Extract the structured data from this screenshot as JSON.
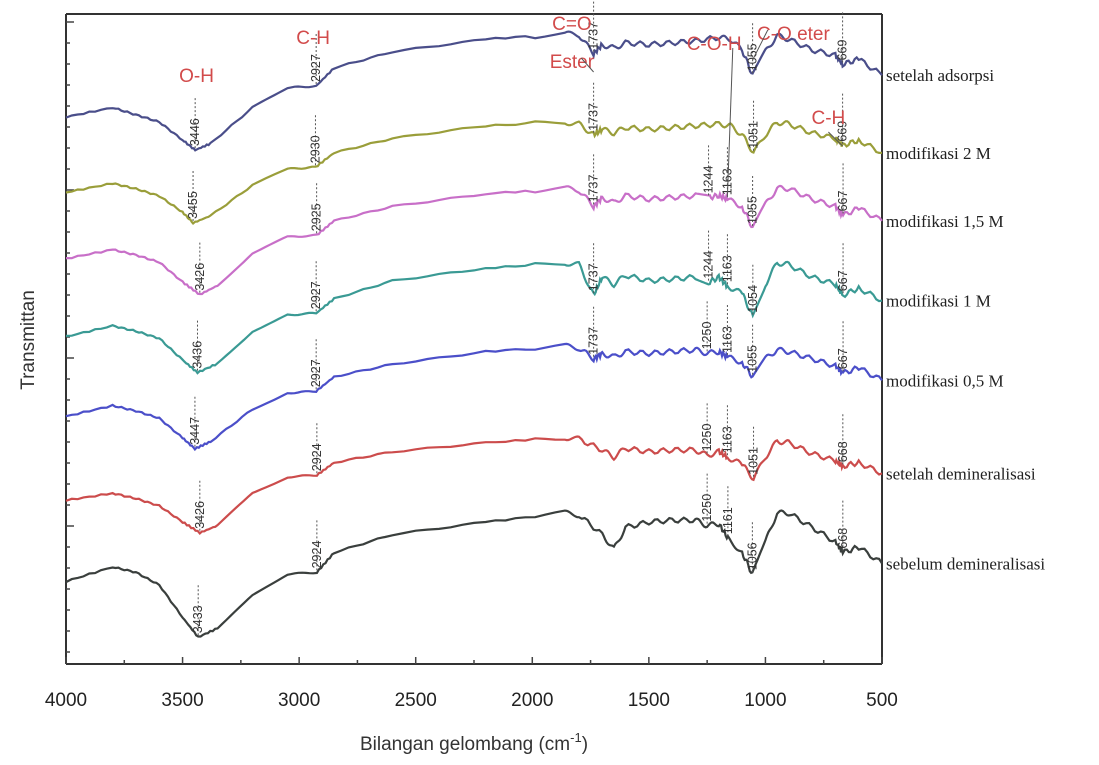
{
  "chart_data": {
    "type": "line",
    "title": "",
    "xlabel": "Bilangan gelombang (cm",
    "xlabel_sup": "-1",
    "xlabel_close": ")",
    "ylabel": "Transmittan",
    "xlim": [
      4000,
      500
    ],
    "x_reversed": true,
    "y_ticklabels": false,
    "grid": false,
    "legend": "labels at right end of each curve",
    "x_ticks": [
      4000,
      3500,
      3000,
      2500,
      2000,
      1500,
      1000,
      500
    ],
    "group_labels": [
      {
        "text": "O-H",
        "x": 3440
      },
      {
        "text": "C-H",
        "x": 2940
      },
      {
        "text": "C=O",
        "x": 1830
      },
      {
        "text": "Ester",
        "x": 1830
      },
      {
        "text": "C-O-H",
        "x": 1220
      },
      {
        "text": "C-O eter",
        "x": 880
      },
      {
        "text": "C-H",
        "x": 730
      }
    ],
    "series": [
      {
        "name": "setelah adsorpsi",
        "color": "#4a4e8a",
        "peaks": [
          "3446",
          "2927",
          "1737",
          "1055",
          "669"
        ],
        "points": [
          [
            4000,
            0.14
          ],
          [
            3800,
            0.4
          ],
          [
            3700,
            0.2
          ],
          [
            3600,
            0.0
          ],
          [
            3500,
            -0.5
          ],
          [
            3446,
            -0.78
          ],
          [
            3380,
            -0.6
          ],
          [
            3200,
            0.4
          ],
          [
            3050,
            0.95
          ],
          [
            2927,
            1.0
          ],
          [
            2850,
            1.5
          ],
          [
            2600,
            1.95
          ],
          [
            2200,
            2.3
          ],
          [
            1860,
            2.45
          ],
          [
            1800,
            2.42
          ],
          [
            1737,
            1.9
          ],
          [
            1700,
            2.15
          ],
          [
            1650,
            2.05
          ],
          [
            1600,
            2.2
          ],
          [
            1500,
            2.15
          ],
          [
            1400,
            2.2
          ],
          [
            1300,
            2.25
          ],
          [
            1200,
            2.35
          ],
          [
            1150,
            2.3
          ],
          [
            1100,
            2.0
          ],
          [
            1055,
            1.3
          ],
          [
            1000,
            1.95
          ],
          [
            950,
            2.4
          ],
          [
            900,
            2.3
          ],
          [
            800,
            2.0
          ],
          [
            700,
            1.85
          ],
          [
            669,
            1.6
          ],
          [
            600,
            1.75
          ],
          [
            500,
            1.3
          ]
        ]
      },
      {
        "name": "modifikasi 2 M",
        "color": "#9a9e3a",
        "peaks": [
          "3455",
          "2930",
          "1737",
          "1051",
          "669"
        ],
        "points": [
          [
            4000,
            0.1
          ],
          [
            3800,
            0.35
          ],
          [
            3700,
            0.2
          ],
          [
            3600,
            0.0
          ],
          [
            3500,
            -0.45
          ],
          [
            3455,
            -0.75
          ],
          [
            3380,
            -0.55
          ],
          [
            3200,
            0.3
          ],
          [
            3050,
            0.75
          ],
          [
            2930,
            0.8
          ],
          [
            2850,
            1.2
          ],
          [
            2600,
            1.6
          ],
          [
            2200,
            1.95
          ],
          [
            1860,
            2.05
          ],
          [
            1800,
            2.0
          ],
          [
            1737,
            1.7
          ],
          [
            1700,
            1.85
          ],
          [
            1650,
            1.75
          ],
          [
            1600,
            1.9
          ],
          [
            1500,
            1.85
          ],
          [
            1400,
            1.9
          ],
          [
            1300,
            1.95
          ],
          [
            1200,
            2.0
          ],
          [
            1150,
            1.95
          ],
          [
            1100,
            1.7
          ],
          [
            1051,
            1.2
          ],
          [
            1000,
            1.7
          ],
          [
            950,
            2.05
          ],
          [
            900,
            2.0
          ],
          [
            800,
            1.75
          ],
          [
            700,
            1.6
          ],
          [
            669,
            1.4
          ],
          [
            600,
            1.55
          ],
          [
            500,
            1.2
          ]
        ]
      },
      {
        "name": "modifikasi 1,5 M",
        "color": "#c86fc8",
        "peaks": [
          "3426",
          "2925",
          "1737",
          "1244",
          "1163",
          "1055",
          "667"
        ],
        "points": [
          [
            4000,
            0.15
          ],
          [
            3800,
            0.4
          ],
          [
            3700,
            0.25
          ],
          [
            3600,
            0.05
          ],
          [
            3500,
            -0.5
          ],
          [
            3426,
            -0.85
          ],
          [
            3350,
            -0.6
          ],
          [
            3200,
            0.3
          ],
          [
            3050,
            0.75
          ],
          [
            2925,
            0.8
          ],
          [
            2850,
            1.2
          ],
          [
            2600,
            1.6
          ],
          [
            2200,
            1.95
          ],
          [
            1860,
            2.1
          ],
          [
            1800,
            2.05
          ],
          [
            1737,
            1.6
          ],
          [
            1700,
            1.85
          ],
          [
            1650,
            1.7
          ],
          [
            1600,
            1.9
          ],
          [
            1500,
            1.8
          ],
          [
            1400,
            1.85
          ],
          [
            1300,
            1.9
          ],
          [
            1244,
            1.85
          ],
          [
            1200,
            1.9
          ],
          [
            1163,
            1.8
          ],
          [
            1100,
            1.6
          ],
          [
            1055,
            1.0
          ],
          [
            1000,
            1.65
          ],
          [
            950,
            2.1
          ],
          [
            900,
            2.1
          ],
          [
            800,
            1.8
          ],
          [
            700,
            1.6
          ],
          [
            667,
            1.35
          ],
          [
            600,
            1.55
          ],
          [
            500,
            1.2
          ]
        ]
      },
      {
        "name": "modifikasi 1 M",
        "color": "#3a9a94",
        "peaks": [
          "3436",
          "2927",
          "1737",
          "1244",
          "1163",
          "1054",
          "667"
        ],
        "points": [
          [
            4000,
            0.15
          ],
          [
            3800,
            0.45
          ],
          [
            3700,
            0.3
          ],
          [
            3600,
            0.1
          ],
          [
            3500,
            -0.5
          ],
          [
            3436,
            -0.85
          ],
          [
            3350,
            -0.6
          ],
          [
            3200,
            0.3
          ],
          [
            3050,
            0.75
          ],
          [
            2927,
            0.8
          ],
          [
            2850,
            1.2
          ],
          [
            2600,
            1.7
          ],
          [
            2200,
            2.05
          ],
          [
            1860,
            2.2
          ],
          [
            1800,
            2.15
          ],
          [
            1737,
            1.3
          ],
          [
            1700,
            1.8
          ],
          [
            1650,
            1.6
          ],
          [
            1600,
            1.85
          ],
          [
            1500,
            1.7
          ],
          [
            1400,
            1.75
          ],
          [
            1300,
            1.8
          ],
          [
            1244,
            1.65
          ],
          [
            1200,
            1.8
          ],
          [
            1163,
            1.55
          ],
          [
            1100,
            1.35
          ],
          [
            1054,
            0.7
          ],
          [
            1000,
            1.6
          ],
          [
            950,
            2.2
          ],
          [
            900,
            2.15
          ],
          [
            800,
            1.8
          ],
          [
            700,
            1.6
          ],
          [
            667,
            1.3
          ],
          [
            600,
            1.5
          ],
          [
            500,
            1.15
          ]
        ]
      },
      {
        "name": "modifikasi 0,5 M",
        "color": "#4b4fc9",
        "peaks": [
          "3447",
          "2927",
          "1737",
          "1250",
          "1163",
          "1055",
          "667"
        ],
        "points": [
          [
            4000,
            0.1
          ],
          [
            3800,
            0.4
          ],
          [
            3700,
            0.25
          ],
          [
            3600,
            0.05
          ],
          [
            3500,
            -0.5
          ],
          [
            3447,
            -0.8
          ],
          [
            3380,
            -0.6
          ],
          [
            3200,
            0.3
          ],
          [
            3050,
            0.75
          ],
          [
            2927,
            0.8
          ],
          [
            2850,
            1.2
          ],
          [
            2600,
            1.55
          ],
          [
            2200,
            1.9
          ],
          [
            1860,
            2.05
          ],
          [
            1800,
            2.0
          ],
          [
            1737,
            1.7
          ],
          [
            1700,
            1.85
          ],
          [
            1650,
            1.75
          ],
          [
            1600,
            1.9
          ],
          [
            1500,
            1.85
          ],
          [
            1400,
            1.9
          ],
          [
            1300,
            1.95
          ],
          [
            1250,
            1.85
          ],
          [
            1200,
            1.9
          ],
          [
            1163,
            1.75
          ],
          [
            1100,
            1.6
          ],
          [
            1055,
            1.2
          ],
          [
            1000,
            1.7
          ],
          [
            950,
            1.95
          ],
          [
            900,
            1.9
          ],
          [
            800,
            1.7
          ],
          [
            700,
            1.5
          ],
          [
            667,
            1.3
          ],
          [
            600,
            1.45
          ],
          [
            500,
            1.1
          ]
        ]
      },
      {
        "name": "setelah demineralisasi",
        "color": "#cc4c4c",
        "peaks": [
          "3426",
          "2924",
          "1250",
          "1163",
          "1051",
          "668"
        ],
        "points": [
          [
            4000,
            0.1
          ],
          [
            3800,
            0.3
          ],
          [
            3700,
            0.15
          ],
          [
            3600,
            -0.05
          ],
          [
            3500,
            -0.5
          ],
          [
            3426,
            -0.8
          ],
          [
            3350,
            -0.6
          ],
          [
            3200,
            0.3
          ],
          [
            3050,
            0.75
          ],
          [
            2924,
            0.8
          ],
          [
            2850,
            1.15
          ],
          [
            2600,
            1.45
          ],
          [
            2200,
            1.7
          ],
          [
            1860,
            1.85
          ],
          [
            1800,
            1.8
          ],
          [
            1700,
            1.5
          ],
          [
            1650,
            1.3
          ],
          [
            1600,
            1.55
          ],
          [
            1500,
            1.45
          ],
          [
            1400,
            1.5
          ],
          [
            1300,
            1.5
          ],
          [
            1250,
            1.35
          ],
          [
            1200,
            1.45
          ],
          [
            1163,
            1.3
          ],
          [
            1100,
            1.1
          ],
          [
            1051,
            0.7
          ],
          [
            1000,
            1.3
          ],
          [
            950,
            1.75
          ],
          [
            900,
            1.7
          ],
          [
            800,
            1.4
          ],
          [
            700,
            1.2
          ],
          [
            668,
            1.05
          ],
          [
            600,
            1.15
          ],
          [
            500,
            0.85
          ]
        ]
      },
      {
        "name": "sebelum demineralisasi",
        "color": "#3a3f3d",
        "peaks": [
          "3433",
          "2924",
          "1250",
          "1161",
          "1056",
          "668"
        ],
        "points": [
          [
            4000,
            0.1
          ],
          [
            3800,
            0.5
          ],
          [
            3700,
            0.35
          ],
          [
            3600,
            0.0
          ],
          [
            3500,
            -0.9
          ],
          [
            3433,
            -1.45
          ],
          [
            3350,
            -1.2
          ],
          [
            3200,
            -0.3
          ],
          [
            3050,
            0.3
          ],
          [
            2924,
            0.35
          ],
          [
            2850,
            0.9
          ],
          [
            2600,
            1.4
          ],
          [
            2200,
            1.75
          ],
          [
            1860,
            2.0
          ],
          [
            1800,
            1.95
          ],
          [
            1700,
            1.4
          ],
          [
            1650,
            1.0
          ],
          [
            1600,
            1.6
          ],
          [
            1500,
            1.75
          ],
          [
            1400,
            1.8
          ],
          [
            1300,
            1.8
          ],
          [
            1250,
            1.65
          ],
          [
            1200,
            1.7
          ],
          [
            1161,
            1.3
          ],
          [
            1100,
            0.9
          ],
          [
            1056,
            0.3
          ],
          [
            1000,
            1.2
          ],
          [
            950,
            2.0
          ],
          [
            900,
            2.0
          ],
          [
            800,
            1.6
          ],
          [
            700,
            1.2
          ],
          [
            668,
            0.9
          ],
          [
            600,
            1.05
          ],
          [
            500,
            0.6
          ]
        ]
      }
    ]
  }
}
